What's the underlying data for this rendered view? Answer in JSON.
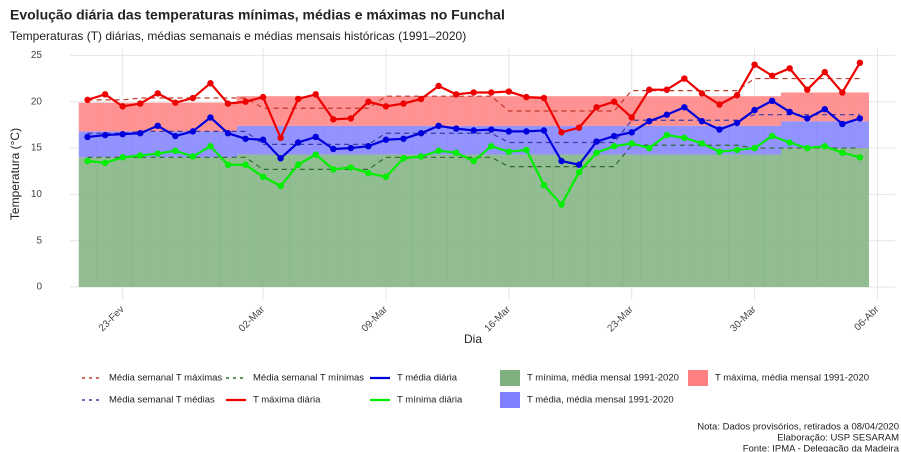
{
  "chart_data": {
    "type": "line",
    "title": "Evolução diária das temperaturas mínimas, médias e máximas no Funchal",
    "subtitle": "Temperaturas (T) diárias, médias semanais e médias mensais históricas (1991–2020)",
    "x_label": "Dia",
    "y_label": "Temperatura (°C)",
    "x": [
      "21-02",
      "22-02",
      "23-02",
      "24-02",
      "25-02",
      "26-02",
      "27-02",
      "28-02",
      "29-02",
      "01-03",
      "02-03",
      "03-03",
      "04-03",
      "05-03",
      "06-03",
      "07-03",
      "08-03",
      "09-03",
      "10-03",
      "11-03",
      "12-03",
      "13-03",
      "14-03",
      "15-03",
      "16-03",
      "17-03",
      "18-03",
      "19-03",
      "20-03",
      "21-03",
      "22-03",
      "23-03",
      "24-03",
      "25-03",
      "26-03",
      "27-03",
      "28-03",
      "29-03",
      "30-03",
      "31-03",
      "01-04",
      "02-04",
      "03-04",
      "04-04",
      "05-04"
    ],
    "xlim": [
      "20-02",
      "07-04"
    ],
    "xticks": [
      {
        "value": "23-02",
        "label": "23-Fev"
      },
      {
        "value": "02-03",
        "label": "02-Mar"
      },
      {
        "value": "09-03",
        "label": "09-Mar"
      },
      {
        "value": "16-03",
        "label": "16-Mar"
      },
      {
        "value": "23-03",
        "label": "23-Mar"
      },
      {
        "value": "30-03",
        "label": "30-Mar"
      },
      {
        "value": "06-04",
        "label": "06-Abr"
      }
    ],
    "ylim": [
      -1.4,
      25.8
    ],
    "yticks": [
      0,
      5,
      10,
      15,
      20,
      25
    ],
    "grid": true,
    "series": [
      {
        "name": "Média semanal T máximas",
        "color": "#c0392b",
        "style": "dashed",
        "values": [
          20.2,
          20.2,
          20.2,
          20.4,
          20.4,
          20.4,
          20.4,
          20.4,
          20.4,
          20.4,
          19.3,
          19.3,
          19.3,
          19.3,
          19.3,
          19.3,
          19.3,
          20.6,
          20.6,
          20.6,
          20.6,
          20.6,
          20.6,
          20.6,
          19.0,
          19.0,
          19.0,
          19.0,
          19.0,
          19.0,
          19.0,
          21.2,
          21.2,
          21.2,
          21.2,
          21.2,
          21.2,
          21.2,
          22.5,
          22.5,
          22.5,
          22.5,
          22.5,
          22.5,
          22.5
        ]
      },
      {
        "name": "Média semanal T médias",
        "color": "#3a3aa8",
        "style": "dashed",
        "values": [
          16.6,
          16.6,
          16.6,
          16.8,
          16.8,
          16.8,
          16.8,
          16.8,
          16.8,
          16.8,
          15.4,
          15.4,
          15.4,
          15.4,
          15.4,
          15.4,
          15.4,
          16.6,
          16.6,
          16.6,
          16.6,
          16.6,
          16.6,
          16.6,
          15.6,
          15.6,
          15.6,
          15.6,
          15.6,
          15.6,
          15.6,
          18.0,
          18.0,
          18.0,
          18.0,
          18.0,
          18.0,
          18.0,
          18.6,
          18.6,
          18.6,
          18.6,
          18.6,
          18.6,
          18.6
        ]
      },
      {
        "name": "Média semanal T mínimas",
        "color": "#2e6b2e",
        "style": "dashed",
        "values": [
          14.0,
          14.0,
          14.0,
          14.0,
          14.0,
          14.0,
          14.0,
          14.0,
          14.0,
          14.0,
          12.7,
          12.7,
          12.7,
          12.7,
          12.7,
          12.7,
          12.7,
          14.0,
          14.0,
          14.0,
          14.0,
          14.0,
          14.0,
          14.0,
          13.0,
          13.0,
          13.0,
          13.0,
          13.0,
          13.0,
          13.0,
          15.3,
          15.3,
          15.3,
          15.3,
          15.3,
          15.3,
          15.3,
          15.0,
          15.0,
          15.0,
          15.0,
          15.0,
          15.0,
          15.0
        ]
      },
      {
        "name": "T máxima diária",
        "color": "#ee0000",
        "style": "solid",
        "values": [
          20.2,
          20.8,
          19.5,
          19.8,
          20.9,
          19.9,
          20.4,
          22.0,
          19.8,
          20.0,
          20.5,
          16.1,
          20.3,
          20.8,
          18.1,
          18.2,
          20.0,
          19.5,
          19.8,
          20.3,
          21.7,
          20.8,
          21.0,
          21.0,
          21.1,
          20.5,
          20.4,
          16.7,
          17.2,
          19.4,
          20.0,
          18.3,
          21.3,
          21.3,
          22.5,
          20.9,
          19.7,
          20.7,
          24.0,
          22.8,
          23.6,
          21.3,
          23.2,
          21.0,
          24.2
        ]
      },
      {
        "name": "T média diária",
        "color": "#0000dd",
        "style": "solid",
        "values": [
          16.2,
          16.4,
          16.5,
          16.6,
          17.4,
          16.3,
          16.8,
          18.3,
          16.6,
          16.0,
          15.9,
          13.9,
          15.6,
          16.2,
          14.9,
          15.0,
          15.2,
          15.9,
          16.0,
          16.6,
          17.4,
          17.1,
          16.9,
          17.0,
          16.8,
          16.8,
          16.9,
          13.6,
          13.2,
          15.7,
          16.3,
          16.7,
          17.9,
          18.6,
          19.4,
          17.9,
          17.0,
          17.7,
          19.1,
          20.1,
          18.9,
          18.2,
          19.2,
          17.6,
          18.2
        ]
      },
      {
        "name": "T mínima diária",
        "color": "#00ee00",
        "style": "solid",
        "values": [
          13.6,
          13.4,
          14.0,
          14.2,
          14.4,
          14.7,
          14.1,
          15.2,
          13.2,
          13.2,
          11.9,
          10.9,
          13.2,
          14.3,
          12.7,
          12.9,
          12.3,
          11.9,
          13.9,
          14.1,
          14.7,
          14.5,
          13.6,
          15.2,
          14.6,
          14.8,
          11.0,
          8.9,
          12.4,
          14.5,
          15.2,
          15.5,
          15.0,
          16.4,
          16.1,
          15.5,
          14.6,
          14.8,
          15.0,
          16.3,
          15.6,
          15.0,
          15.2,
          14.5,
          14.0
        ]
      },
      {
        "name": "T mínima, média mensal 1991-2020",
        "color": "#7fb07f",
        "style": "band",
        "values": [
          14.0,
          14.0,
          14.0,
          14.0,
          14.0,
          14.0,
          14.0,
          14.0,
          14.0,
          14.3,
          14.3,
          14.3,
          14.3,
          14.3,
          14.3,
          14.3,
          14.3,
          14.3,
          14.3,
          14.3,
          14.3,
          14.3,
          14.3,
          14.3,
          14.3,
          14.3,
          14.3,
          14.3,
          14.3,
          14.3,
          14.3,
          14.3,
          14.3,
          14.3,
          14.3,
          14.3,
          14.3,
          14.3,
          14.3,
          14.3,
          15.0,
          15.0,
          15.0,
          15.0,
          15.0
        ]
      },
      {
        "name": "T média, média mensal 1991-2020",
        "color": "#8080ff",
        "style": "band",
        "values": [
          16.8,
          16.8,
          16.8,
          16.8,
          16.8,
          16.8,
          16.8,
          16.8,
          16.8,
          17.4,
          17.4,
          17.4,
          17.4,
          17.4,
          17.4,
          17.4,
          17.4,
          17.4,
          17.4,
          17.4,
          17.4,
          17.4,
          17.4,
          17.4,
          17.4,
          17.4,
          17.4,
          17.4,
          17.4,
          17.4,
          17.4,
          17.4,
          17.4,
          17.4,
          17.4,
          17.4,
          17.4,
          17.4,
          17.4,
          17.4,
          17.9,
          17.9,
          17.9,
          17.9,
          17.9
        ]
      },
      {
        "name": "T máxima, média mensal 1991-2020",
        "color": "#ff8080",
        "style": "band",
        "values": [
          19.9,
          19.9,
          19.9,
          19.9,
          19.9,
          19.9,
          19.9,
          19.9,
          19.9,
          20.6,
          20.6,
          20.6,
          20.6,
          20.6,
          20.6,
          20.6,
          20.6,
          20.6,
          20.6,
          20.6,
          20.6,
          20.6,
          20.6,
          20.6,
          20.6,
          20.6,
          20.6,
          20.6,
          20.6,
          20.6,
          20.6,
          20.6,
          20.6,
          20.6,
          20.6,
          20.6,
          20.6,
          20.6,
          20.6,
          20.6,
          21.0,
          21.0,
          21.0,
          21.0,
          21.0
        ]
      }
    ],
    "notes": [
      "Nota: Dados provisórios, retirados a 08/04/2020",
      "Elaboração: USP SESARAM",
      "Fonte: IPMA - Delegação da Madeira"
    ]
  }
}
